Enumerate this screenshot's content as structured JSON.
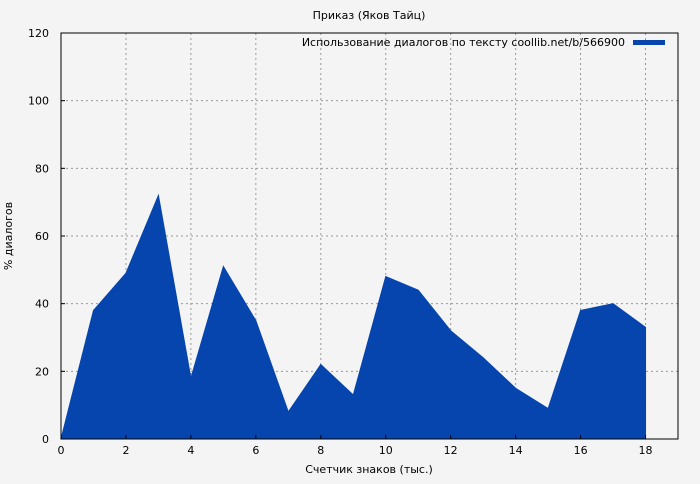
{
  "chart_data": {
    "type": "area",
    "title": "Приказ (Яков Тайц)",
    "xlabel": "Счетчик знаков (тыс.)",
    "ylabel": "% диалогов",
    "xlim": [
      0,
      19
    ],
    "ylim": [
      0,
      120
    ],
    "xticks": [
      0,
      2,
      4,
      6,
      8,
      10,
      12,
      14,
      16,
      18
    ],
    "yticks": [
      0,
      20,
      40,
      60,
      80,
      100,
      120
    ],
    "grid": true,
    "legend_position": "top-right",
    "series": [
      {
        "name": "Использование диалогов по тексту coollib.net/b/566900",
        "color": "#0645ad",
        "x": [
          0,
          1,
          2,
          3,
          4,
          5,
          6,
          7,
          8,
          9,
          10,
          11,
          12,
          13,
          14,
          15,
          16,
          17,
          18
        ],
        "values": [
          0,
          38,
          49,
          72,
          18,
          51,
          35,
          8,
          22,
          13,
          48,
          44,
          32,
          24,
          15,
          9,
          38,
          40,
          33
        ]
      }
    ]
  }
}
